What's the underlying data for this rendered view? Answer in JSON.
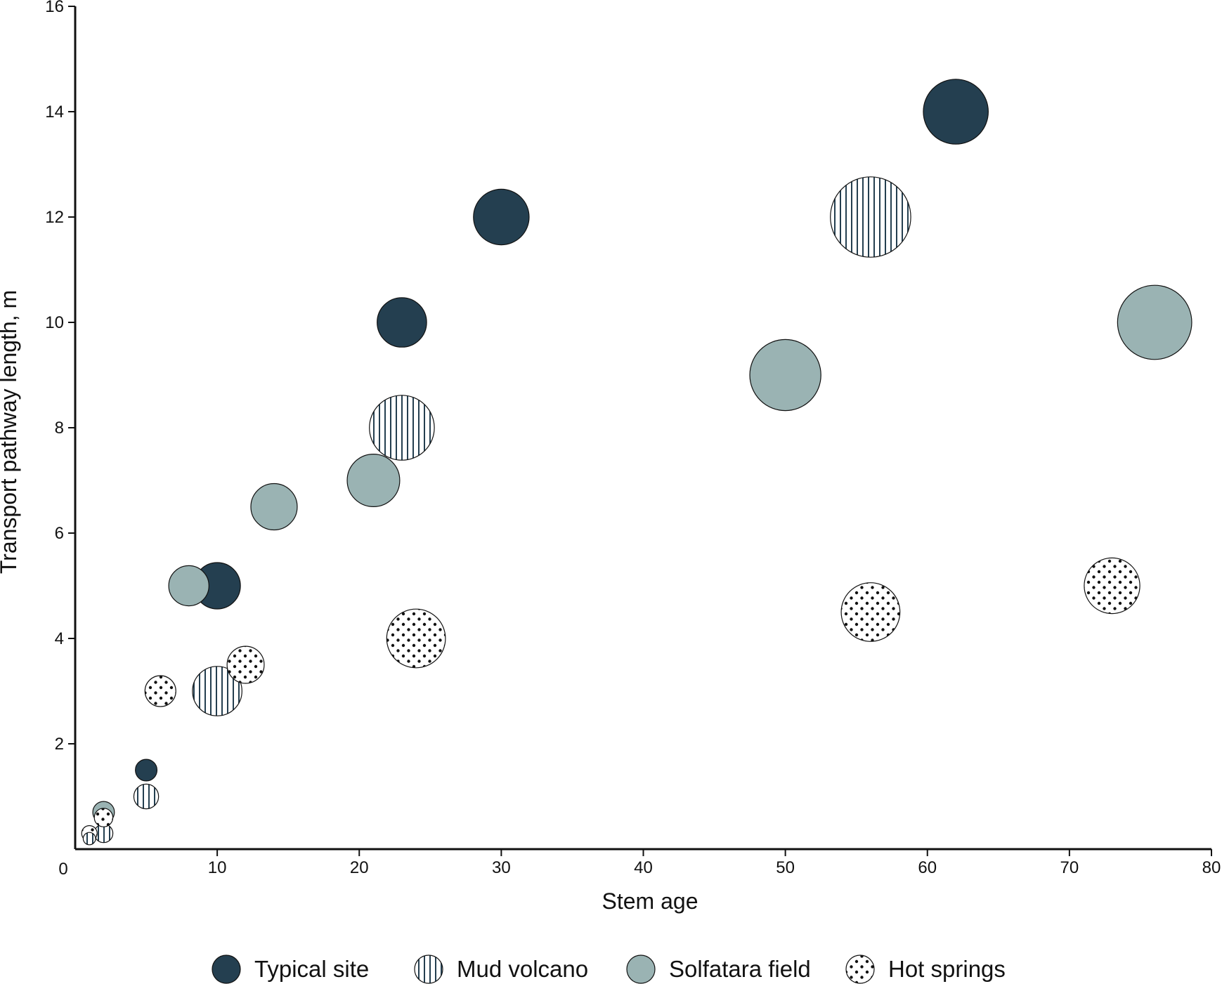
{
  "chart_data": {
    "type": "bubble",
    "xlabel": "Stem age",
    "ylabel": "Transport pathway length, m",
    "xlim": [
      0,
      80
    ],
    "ylim": [
      0,
      16
    ],
    "x_ticks": [
      10,
      20,
      30,
      40,
      50,
      60,
      70,
      80
    ],
    "x_origin_label": "0",
    "y_ticks": [
      2,
      4,
      6,
      8,
      10,
      12,
      14,
      16
    ],
    "grid": false,
    "legend_position": "bottom",
    "series": [
      {
        "name": "Typical site",
        "pattern": "solid",
        "color": "#243f50",
        "points": [
          {
            "x": 5,
            "y": 1.5,
            "size": 0.7
          },
          {
            "x": 10,
            "y": 5,
            "size": 1.5
          },
          {
            "x": 23,
            "y": 10,
            "size": 1.6
          },
          {
            "x": 30,
            "y": 12,
            "size": 1.8
          },
          {
            "x": 62,
            "y": 14,
            "size": 2.1
          }
        ]
      },
      {
        "name": "Mud volcano",
        "pattern": "vertical-stripes",
        "color": "#243f50",
        "points": [
          {
            "x": 1,
            "y": 0.2,
            "size": 0.4
          },
          {
            "x": 2,
            "y": 0.3,
            "size": 0.6
          },
          {
            "x": 5,
            "y": 1,
            "size": 0.8
          },
          {
            "x": 10,
            "y": 3,
            "size": 1.6
          },
          {
            "x": 23,
            "y": 8,
            "size": 2.1
          },
          {
            "x": 56,
            "y": 12,
            "size": 2.6
          }
        ]
      },
      {
        "name": "Solfatara field",
        "pattern": "solid",
        "color": "#9ab3b3",
        "points": [
          {
            "x": 2,
            "y": 0.7,
            "size": 0.7
          },
          {
            "x": 8,
            "y": 5,
            "size": 1.3
          },
          {
            "x": 14,
            "y": 6.5,
            "size": 1.5
          },
          {
            "x": 21,
            "y": 7,
            "size": 1.7
          },
          {
            "x": 50,
            "y": 9,
            "size": 2.3
          },
          {
            "x": 76,
            "y": 10,
            "size": 2.4
          }
        ]
      },
      {
        "name": "Hot springs",
        "pattern": "dots",
        "color": "#111111",
        "points": [
          {
            "x": 1,
            "y": 0.3,
            "size": 0.5
          },
          {
            "x": 2,
            "y": 0.6,
            "size": 0.6
          },
          {
            "x": 6,
            "y": 3,
            "size": 1.0
          },
          {
            "x": 12,
            "y": 3.5,
            "size": 1.2
          },
          {
            "x": 24,
            "y": 4,
            "size": 1.9
          },
          {
            "x": 56,
            "y": 4.5,
            "size": 1.9
          },
          {
            "x": 73,
            "y": 5,
            "size": 1.8
          }
        ]
      }
    ]
  }
}
